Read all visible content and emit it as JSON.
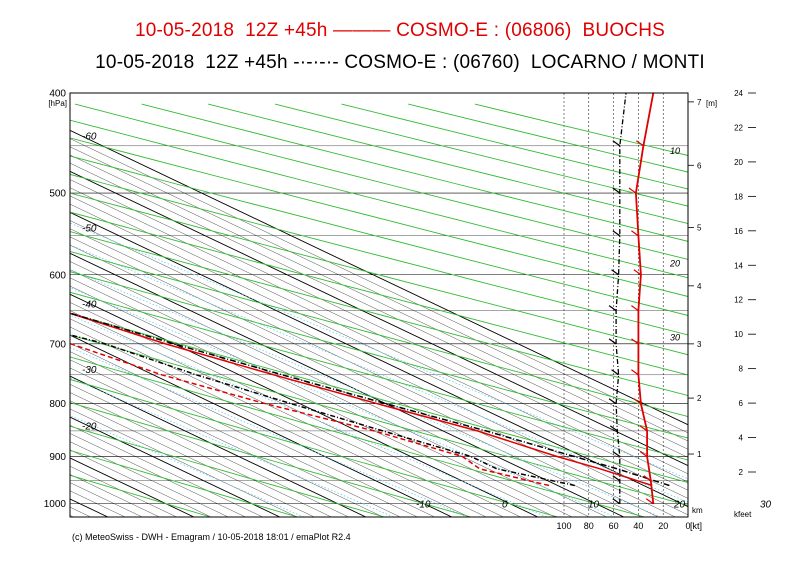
{
  "titles": {
    "line1": "10-05-2018  12Z +45h ——— COSMO-E : (06806)  BUOCHS",
    "line2": "10-05-2018  12Z +45h -·-·-·- COSMO-E : (06760)  LOCARNO / MONTI"
  },
  "footer": "(c) MeteoSwiss - DWH - Emagram / 10-05-2018  18:01 / emaPlot R2.4",
  "colors": {
    "buochs": "#e00000",
    "locarno": "#000000",
    "dry_adiabat": "#33bb33",
    "mixing_ratio": "#66ccee",
    "isotherm": "#000000",
    "frame": "#000000"
  },
  "chart_data": {
    "type": "line",
    "subtype": "emagram",
    "ylabel": "[hPa]",
    "pressure_ticks": [
      400,
      500,
      600,
      700,
      800,
      900,
      1000
    ],
    "pressure_range": [
      400,
      1030
    ],
    "skew_temp_labels_bottom": [
      -10,
      0,
      10,
      20,
      30
    ],
    "skew_temp_labels_top": [
      -60,
      -50,
      -40,
      -30,
      -20
    ],
    "left_temp_labels": [
      -60,
      -50,
      -40,
      -30,
      -20
    ],
    "height_m_label": "[m]",
    "height_m_ticks": [
      1,
      2,
      3,
      4,
      5,
      6,
      7
    ],
    "height_m_pressures": [
      895,
      790,
      700,
      615,
      540,
      470,
      408
    ],
    "height_kfeet_label": "kfeet",
    "height_kfeet_ticks": [
      2,
      4,
      6,
      8,
      10,
      12,
      14,
      16,
      18,
      20,
      22,
      24
    ],
    "height_km_label": "km",
    "wind_kt_label": "[kt]",
    "wind_kt_ticks": [
      100,
      80,
      60,
      40,
      20,
      0
    ],
    "wind_scale_labels": [
      {
        "text": "10",
        "p": 455
      },
      {
        "text": "20",
        "p": 585
      },
      {
        "text": "30",
        "p": 690
      }
    ],
    "series": [
      {
        "name": "BUOCHS (06806)",
        "style": "solid",
        "temperature": [
          {
            "p": 960,
            "t": 21
          },
          {
            "p": 925,
            "t": 19
          },
          {
            "p": 900,
            "t": 17
          },
          {
            "p": 850,
            "t": 14
          },
          {
            "p": 800,
            "t": 9
          },
          {
            "p": 750,
            "t": 4
          },
          {
            "p": 700,
            "t": -1
          },
          {
            "p": 650,
            "t": -5
          },
          {
            "p": 600,
            "t": -10
          },
          {
            "p": 550,
            "t": -15
          },
          {
            "p": 500,
            "t": -21
          },
          {
            "p": 450,
            "t": -27
          },
          {
            "p": 400,
            "t": -34
          }
        ],
        "dewpoint": [
          {
            "p": 960,
            "t": 9
          },
          {
            "p": 925,
            "t": 5
          },
          {
            "p": 900,
            "t": 6
          },
          {
            "p": 850,
            "t": 2
          },
          {
            "p": 800,
            "t": -4
          },
          {
            "p": 750,
            "t": -9
          },
          {
            "p": 700,
            "t": -12
          },
          {
            "p": 650,
            "t": -16
          },
          {
            "p": 600,
            "t": -25
          },
          {
            "p": 550,
            "t": -37
          },
          {
            "p": 500,
            "t": -50
          },
          {
            "p": 470,
            "t": -60
          },
          {
            "p": 430,
            "t": -63
          },
          {
            "p": 400,
            "t": -62
          }
        ]
      },
      {
        "name": "LOCARNO / MONTI (06760)",
        "style": "dashdot",
        "temperature": [
          {
            "p": 960,
            "t": 23
          },
          {
            "p": 925,
            "t": 21
          },
          {
            "p": 900,
            "t": 19
          },
          {
            "p": 850,
            "t": 15
          },
          {
            "p": 800,
            "t": 10
          },
          {
            "p": 750,
            "t": 5
          },
          {
            "p": 700,
            "t": 0
          },
          {
            "p": 650,
            "t": -5
          },
          {
            "p": 600,
            "t": -9
          },
          {
            "p": 550,
            "t": -14
          },
          {
            "p": 500,
            "t": -20
          },
          {
            "p": 450,
            "t": -26
          },
          {
            "p": 400,
            "t": -33
          }
        ],
        "dewpoint": [
          {
            "p": 960,
            "t": 12
          },
          {
            "p": 925,
            "t": 7
          },
          {
            "p": 900,
            "t": 7
          },
          {
            "p": 850,
            "t": 3
          },
          {
            "p": 800,
            "t": -1
          },
          {
            "p": 750,
            "t": -5
          },
          {
            "p": 700,
            "t": -8
          },
          {
            "p": 650,
            "t": -15
          },
          {
            "p": 600,
            "t": -19
          },
          {
            "p": 550,
            "t": -30
          },
          {
            "p": 500,
            "t": -43
          },
          {
            "p": 470,
            "t": -55
          },
          {
            "p": 440,
            "t": -60
          },
          {
            "p": 400,
            "t": -61
          }
        ]
      }
    ],
    "winds": [
      {
        "station": "BUOCHS (06806)",
        "speeds": [
          {
            "p": 1000,
            "kt": 28
          },
          {
            "p": 950,
            "kt": 30
          },
          {
            "p": 900,
            "kt": 33
          },
          {
            "p": 850,
            "kt": 33
          },
          {
            "p": 800,
            "kt": 38
          },
          {
            "p": 750,
            "kt": 40
          },
          {
            "p": 700,
            "kt": 40
          },
          {
            "p": 650,
            "kt": 40
          },
          {
            "p": 600,
            "kt": 38
          },
          {
            "p": 550,
            "kt": 40
          },
          {
            "p": 500,
            "kt": 42
          },
          {
            "p": 450,
            "kt": 36
          },
          {
            "p": 400,
            "kt": 28
          }
        ]
      },
      {
        "station": "LOCARNO / MONTI (06760)",
        "speeds": [
          {
            "p": 1000,
            "kt": 55
          },
          {
            "p": 950,
            "kt": 55
          },
          {
            "p": 900,
            "kt": 55
          },
          {
            "p": 850,
            "kt": 57
          },
          {
            "p": 800,
            "kt": 58
          },
          {
            "p": 750,
            "kt": 56
          },
          {
            "p": 700,
            "kt": 58
          },
          {
            "p": 650,
            "kt": 58
          },
          {
            "p": 600,
            "kt": 56
          },
          {
            "p": 550,
            "kt": 55
          },
          {
            "p": 500,
            "kt": 55
          },
          {
            "p": 450,
            "kt": 55
          },
          {
            "p": 400,
            "kt": 50
          }
        ]
      }
    ]
  }
}
